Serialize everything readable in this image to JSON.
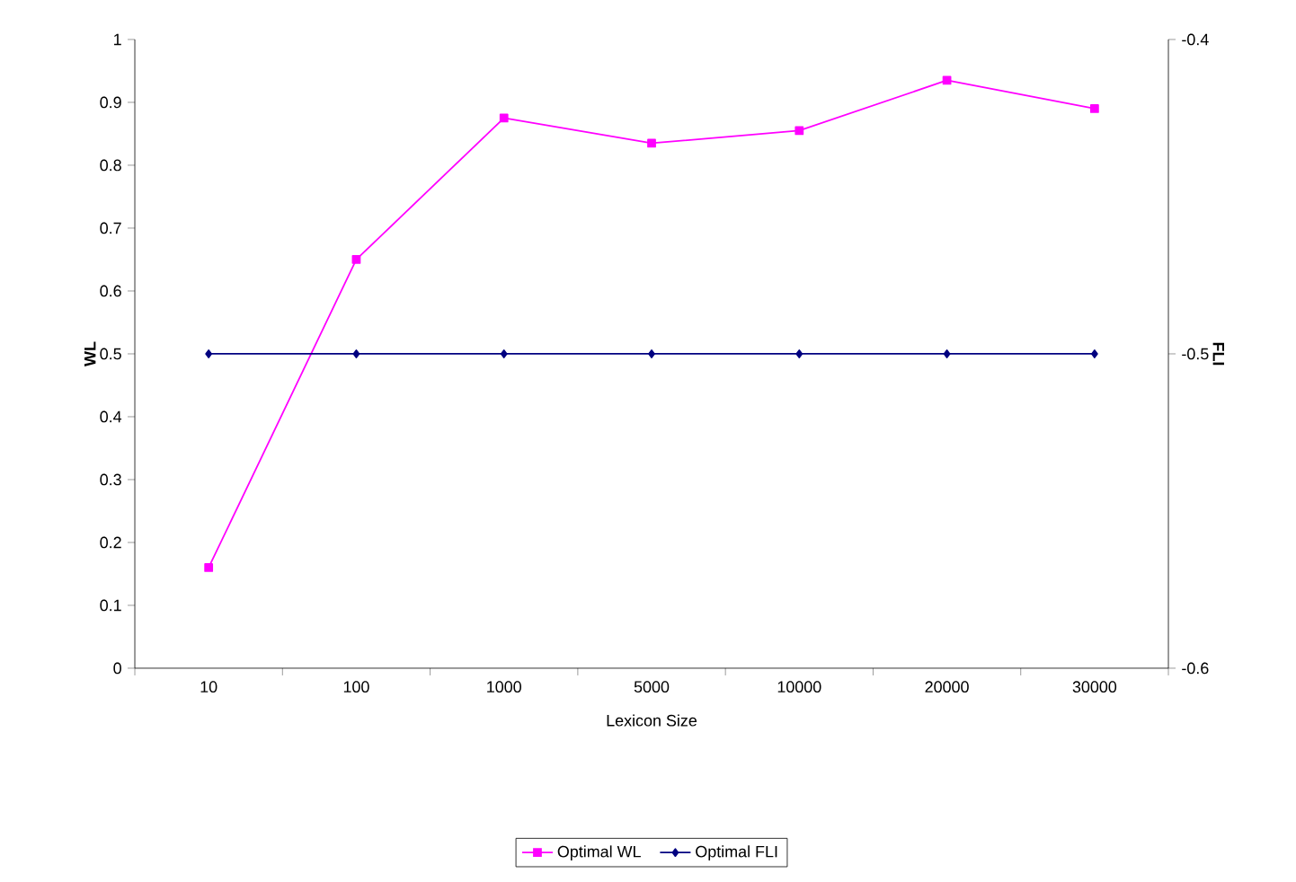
{
  "chart_data": {
    "type": "line",
    "xlabel": "Lexicon Size",
    "ylabel": "WL",
    "y2label": "FLI",
    "categories": [
      "10",
      "100",
      "1000",
      "5000",
      "10000",
      "20000",
      "30000"
    ],
    "series": [
      {
        "name": "Optimal WL",
        "color": "#ff00ff",
        "marker": "square",
        "values": [
          0.16,
          0.65,
          0.875,
          0.835,
          0.855,
          0.935,
          0.89
        ]
      },
      {
        "name": "Optimal FLI",
        "color": "#000080",
        "marker": "diamond",
        "axis": "y2",
        "values": [
          -0.5,
          -0.5,
          -0.5,
          -0.5,
          -0.5,
          -0.5,
          -0.5
        ]
      }
    ],
    "ylim": [
      0,
      1
    ],
    "yticks": [
      0,
      0.1,
      0.2,
      0.3,
      0.4,
      0.5,
      0.6,
      0.7,
      0.8,
      0.9,
      1
    ],
    "y2lim": [
      -0.6,
      -0.4
    ],
    "y2ticks": [
      -0.6,
      -0.5,
      -0.4
    ],
    "grid": false,
    "legend": "bottom",
    "line_style": "solid"
  }
}
